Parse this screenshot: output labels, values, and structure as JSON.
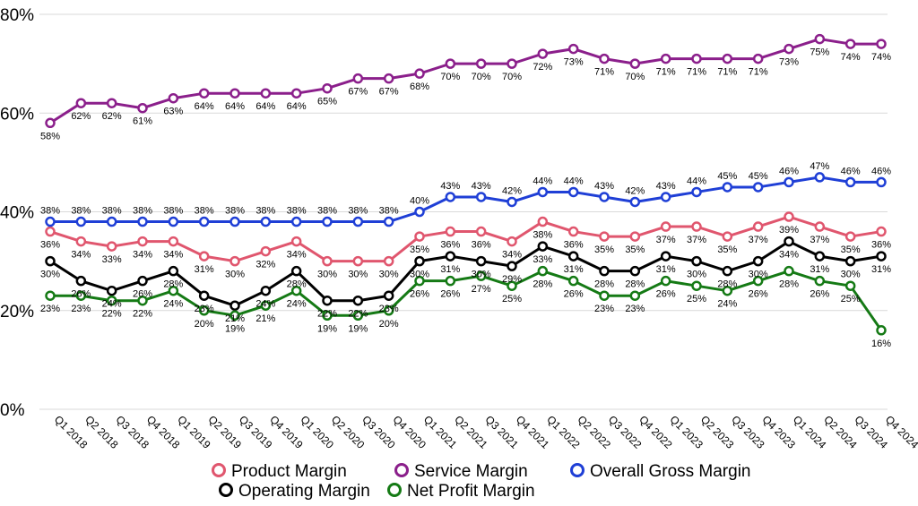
{
  "chart_data": {
    "type": "line",
    "title": "",
    "xlabel": "",
    "ylabel": "",
    "ylim": [
      0,
      80
    ],
    "yticks": [
      "0%",
      "20%",
      "40%",
      "60%",
      "80%"
    ],
    "grid": true,
    "legend_position": "bottom",
    "categories": [
      "Q1 2018",
      "Q2 2018",
      "Q3 2018",
      "Q4 2018",
      "Q1 2019",
      "Q2 2019",
      "Q3 2019",
      "Q4 2019",
      "Q1 2020",
      "Q2 2020",
      "Q3 2020",
      "Q4 2020",
      "Q1 2021",
      "Q2 2021",
      "Q3 2021",
      "Q4 2021",
      "Q1 2022",
      "Q2 2022",
      "Q3 2022",
      "Q4 2022",
      "Q1 2023",
      "Q2 2023",
      "Q3 2023",
      "Q4 2023",
      "Q1 2024",
      "Q2 2024",
      "Q3 2024",
      "Q4 2024"
    ],
    "series": [
      {
        "name": "Product Margin",
        "color": "#e0566e",
        "label_pos": "below",
        "values": [
          36,
          34,
          33,
          34,
          34,
          31,
          30,
          32,
          34,
          30,
          30,
          30,
          35,
          36,
          36,
          34,
          38,
          36,
          35,
          35,
          37,
          37,
          35,
          37,
          39,
          37,
          35,
          36
        ]
      },
      {
        "name": "Service Margin",
        "color": "#8b1f8b",
        "label_pos": "below",
        "values": [
          58,
          62,
          62,
          61,
          63,
          64,
          64,
          64,
          64,
          65,
          67,
          67,
          68,
          70,
          70,
          70,
          72,
          73,
          71,
          70,
          71,
          71,
          71,
          71,
          73,
          75,
          74,
          74
        ]
      },
      {
        "name": "Overall Gross Margin",
        "color": "#1f3fd6",
        "label_pos": "above",
        "values": [
          38,
          38,
          38,
          38,
          38,
          38,
          38,
          38,
          38,
          38,
          38,
          38,
          40,
          43,
          43,
          42,
          44,
          44,
          43,
          42,
          43,
          44,
          45,
          45,
          46,
          47,
          46,
          46
        ]
      },
      {
        "name": "Operating Margin",
        "color": "#000000",
        "label_pos": "below",
        "values": [
          30,
          26,
          24,
          26,
          28,
          23,
          21,
          24,
          28,
          22,
          22,
          23,
          30,
          31,
          30,
          29,
          33,
          31,
          28,
          28,
          31,
          30,
          28,
          30,
          34,
          31,
          30,
          31
        ]
      },
      {
        "name": "Net Profit Margin",
        "color": "#157a15",
        "label_pos": "below",
        "values": [
          23,
          23,
          22,
          22,
          24,
          20,
          19,
          21,
          24,
          19,
          19,
          20,
          26,
          26,
          27,
          25,
          28,
          26,
          23,
          23,
          26,
          25,
          24,
          26,
          28,
          26,
          25,
          16
        ]
      }
    ]
  }
}
